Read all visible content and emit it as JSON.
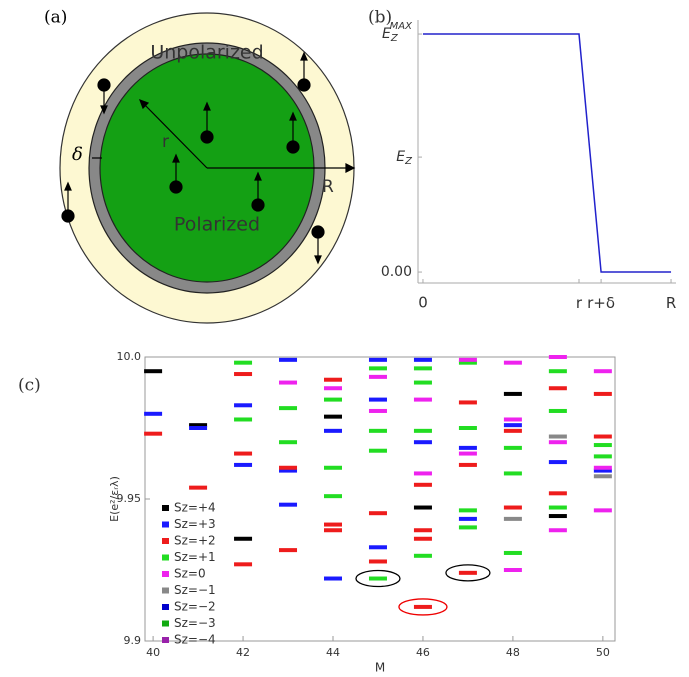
{
  "diagram": {
    "panel_label": "(a)",
    "outer_label": "Unpolarized",
    "inner_label": "Polarized",
    "r_label": "r",
    "R_label": "R",
    "delta_label": "δ"
  },
  "chart_data": [
    {
      "type": "line",
      "panel_label": "(b)",
      "color": "#2222cc",
      "x": [
        0,
        0.629,
        0.718,
        1
      ],
      "values": [
        1,
        1,
        0,
        0
      ],
      "xlim": [
        -0.02,
        1.02
      ],
      "ylim": [
        -0.046,
        1.059
      ],
      "xticks": [
        0,
        {
          "value": 0.629,
          "label": "r"
        },
        {
          "value": 0.718,
          "label": "r+δ"
        },
        {
          "value": 1,
          "label": "R"
        }
      ],
      "yticks": [
        {
          "value": 0,
          "label": "0.00"
        },
        {
          "value": 0.483,
          "label": "E",
          "sub": "Z"
        },
        {
          "value": 1,
          "label": "E",
          "sub": "Z",
          "sup": "MAX"
        }
      ]
    },
    {
      "type": "scatter",
      "panel_label": "(c)",
      "x_label": "M",
      "y_label": "E(e²/εᵣλ)",
      "xlim": [
        39.82,
        50.27
      ],
      "ylim": [
        9.9,
        10.0
      ],
      "xticks": [
        40,
        42,
        44,
        46,
        48,
        50
      ],
      "yticks": [
        9.9,
        9.95,
        {
          "value": 10,
          "label": "10.0"
        }
      ],
      "series": [
        {
          "name": "Sz=+4",
          "color": "#000000",
          "x": [
            40,
            41,
            42,
            44,
            46,
            48,
            49
          ],
          "values": [
            9.995,
            9.976,
            9.936,
            9.979,
            9.947,
            9.987,
            9.944
          ]
        },
        {
          "name": "Sz=+3",
          "color": "#1a1aff",
          "x": [
            40,
            41,
            42,
            42,
            43,
            43,
            43,
            44,
            44,
            45,
            45,
            45,
            46,
            46,
            47,
            47,
            48,
            49,
            50
          ],
          "values": [
            9.98,
            9.975,
            9.983,
            9.962,
            9.999,
            9.96,
            9.948,
            9.974,
            9.922,
            9.999,
            9.985,
            9.933,
            9.999,
            9.97,
            9.968,
            9.943,
            9.976,
            9.963,
            9.96
          ]
        },
        {
          "name": "Sz=+2",
          "color": "#ee1c1c",
          "x": [
            40,
            41,
            42,
            42,
            42,
            43,
            43,
            44,
            44,
            44,
            45,
            45,
            46,
            46,
            46,
            46,
            47,
            47,
            47,
            48,
            48,
            49,
            49,
            50,
            50
          ],
          "values": [
            9.973,
            9.954,
            9.994,
            9.966,
            9.927,
            9.961,
            9.932,
            9.992,
            9.941,
            9.939,
            9.945,
            9.928,
            9.955,
            9.939,
            9.936,
            9.912,
            9.984,
            9.962,
            9.924,
            9.974,
            9.947,
            9.989,
            9.952,
            9.987,
            9.972
          ]
        },
        {
          "name": "Sz=+1",
          "color": "#22dd22",
          "x": [
            42,
            42,
            43,
            43,
            44,
            44,
            44,
            45,
            45,
            45,
            45,
            46,
            46,
            46,
            46,
            47,
            47,
            47,
            47,
            48,
            48,
            48,
            49,
            49,
            49,
            50,
            50
          ],
          "values": [
            9.998,
            9.978,
            9.982,
            9.97,
            9.985,
            9.961,
            9.951,
            9.996,
            9.974,
            9.967,
            9.922,
            9.996,
            9.991,
            9.974,
            9.93,
            9.998,
            9.975,
            9.946,
            9.94,
            9.968,
            9.959,
            9.931,
            9.995,
            9.981,
            9.947,
            9.969,
            9.965
          ]
        },
        {
          "name": "Sz=0",
          "color": "#ee22ee",
          "x": [
            43,
            44,
            45,
            45,
            46,
            46,
            47,
            47,
            48,
            48,
            48,
            49,
            49,
            49,
            50,
            50,
            50
          ],
          "values": [
            9.991,
            9.989,
            9.981,
            9.993,
            9.985,
            9.959,
            9.999,
            9.966,
            9.998,
            9.978,
            9.925,
            10.0,
            9.97,
            9.939,
            9.995,
            9.961,
            9.946
          ]
        },
        {
          "name": "Sz=−1",
          "color": "#888888",
          "x": [
            48,
            49,
            50
          ],
          "values": [
            9.943,
            9.972,
            9.958
          ]
        },
        {
          "name": "Sz=−2",
          "color": "#0000cc",
          "x": [],
          "values": []
        },
        {
          "name": "Sz=−3",
          "color": "#11aa11",
          "x": [],
          "values": []
        },
        {
          "name": "Sz=−4",
          "color": "#9922aa",
          "x": [],
          "values": []
        }
      ]
    }
  ]
}
